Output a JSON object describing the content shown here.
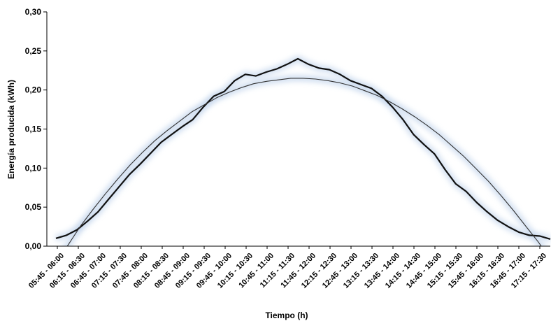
{
  "chart_data": {
    "type": "line",
    "xlabel": "Tiempo (h)",
    "ylabel": "Energía producida (kWh)",
    "ylim": [
      0,
      0.3
    ],
    "yticks": [
      "0,00",
      "0,05",
      "0,10",
      "0,15",
      "0,20",
      "0,25",
      "0,30"
    ],
    "x_tick_labels": [
      "05:45 - 06:00",
      "06:15 - 06:30",
      "06:45 - 07:00",
      "07:15 - 07:30",
      "07:45 - 08:00",
      "08:15 - 08:30",
      "08:45 - 09:00",
      "09:15 - 09:30",
      "09:45 - 10:00",
      "10:15 - 10:30",
      "10:45 - 11:00",
      "11:15 - 11:30",
      "11:45 - 12:00",
      "12:15 - 12:30",
      "12:45 - 13:00",
      "13:15 - 13:30",
      "13:45 - 14:00",
      "14:15 - 14:30",
      "14:45 - 15:00",
      "15:15 - 15:30",
      "15:45 - 16:00",
      "16:15 - 16:30",
      "16:45 - 17:00",
      "17:15 - 17:30"
    ],
    "grid": false,
    "colors": {
      "measured": "#111111",
      "fit": "#333333",
      "glow": "#c9d9ee"
    },
    "series": [
      {
        "values": [
          0.01,
          0.014,
          0.021,
          0.032,
          0.044,
          0.06,
          0.076,
          0.092,
          0.105,
          0.119,
          0.133,
          0.143,
          0.153,
          0.162,
          0.178,
          0.192,
          0.198,
          0.212,
          0.22,
          0.218,
          0.223,
          0.227,
          0.233,
          0.24,
          0.233,
          0.228,
          0.226,
          0.22,
          0.212,
          0.207,
          0.202,
          0.192,
          0.178,
          0.162,
          0.143,
          0.13,
          0.118,
          0.098,
          0.08,
          0.07,
          0.056,
          0.044,
          0.033,
          0.025,
          0.018,
          0.014,
          0.013,
          0.009
        ]
      },
      {
        "values": [
          -0.021,
          0.002,
          0.026,
          0.047,
          0.067,
          0.086,
          0.104,
          0.12,
          0.135,
          0.148,
          0.16,
          0.172,
          0.181,
          0.19,
          0.197,
          0.203,
          0.208,
          0.211,
          0.213,
          0.215,
          0.215,
          0.214,
          0.212,
          0.209,
          0.205,
          0.199,
          0.193,
          0.185,
          0.176,
          0.166,
          0.155,
          0.143,
          0.129,
          0.115,
          0.099,
          0.083,
          0.065,
          0.046,
          0.026,
          0.006,
          -0.016
        ]
      }
    ]
  }
}
